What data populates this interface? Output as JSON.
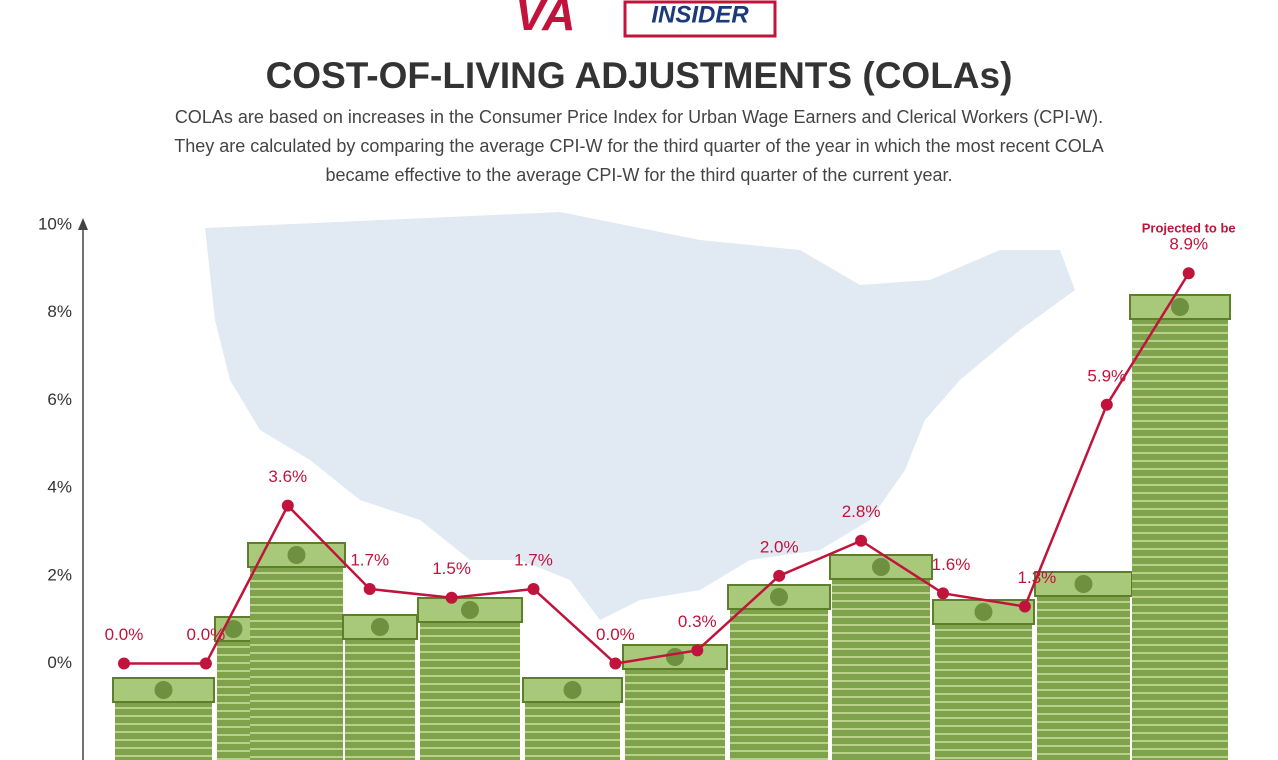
{
  "chart_data": {
    "type": "line",
    "logo_text": "VA",
    "logo_subtext": "INSIDER",
    "title": "COST-OF-LIVING ADJUSTMENTS (COLAs)",
    "subtitle": [
      "COLAs are based on increases in the Consumer Price Index for Urban Wage Earners and Clerical Workers (CPI-W).",
      "They are calculated by comparing the average CPI-W for the third quarter of the year in which the most recent COLA",
      "became effective to the average CPI-W for the third quarter of the current year."
    ],
    "categories": [
      null,
      null,
      null,
      null,
      null,
      null,
      null,
      null,
      null,
      null,
      null,
      null,
      null,
      null
    ],
    "series": [
      {
        "color": "#c0143c",
        "values": [
          0.0,
          0.0,
          3.6,
          1.7,
          1.5,
          1.7,
          0.0,
          0.3,
          2.0,
          2.8,
          1.6,
          1.3,
          5.9,
          8.9
        ],
        "value_labels": [
          "0.0%",
          "0.0%",
          "3.6%",
          "1.7%",
          "1.5%",
          "1.7%",
          "0.0%",
          "0.3%",
          "2.0%",
          "2.8%",
          "1.6%",
          "1.3%",
          "5.9%",
          "8.9%"
        ]
      }
    ],
    "annotation": "Projected to be",
    "ylim": [
      -2.2,
      10
    ],
    "yticks": [
      {
        "value": 0,
        "label": "0%"
      },
      {
        "value": 2,
        "label": "2%"
      },
      {
        "value": 4,
        "label": "4%"
      },
      {
        "value": 6,
        "label": "6%"
      },
      {
        "value": 8,
        "label": "8%"
      },
      {
        "value": 10,
        "label": "10%"
      }
    ],
    "grid": false
  }
}
